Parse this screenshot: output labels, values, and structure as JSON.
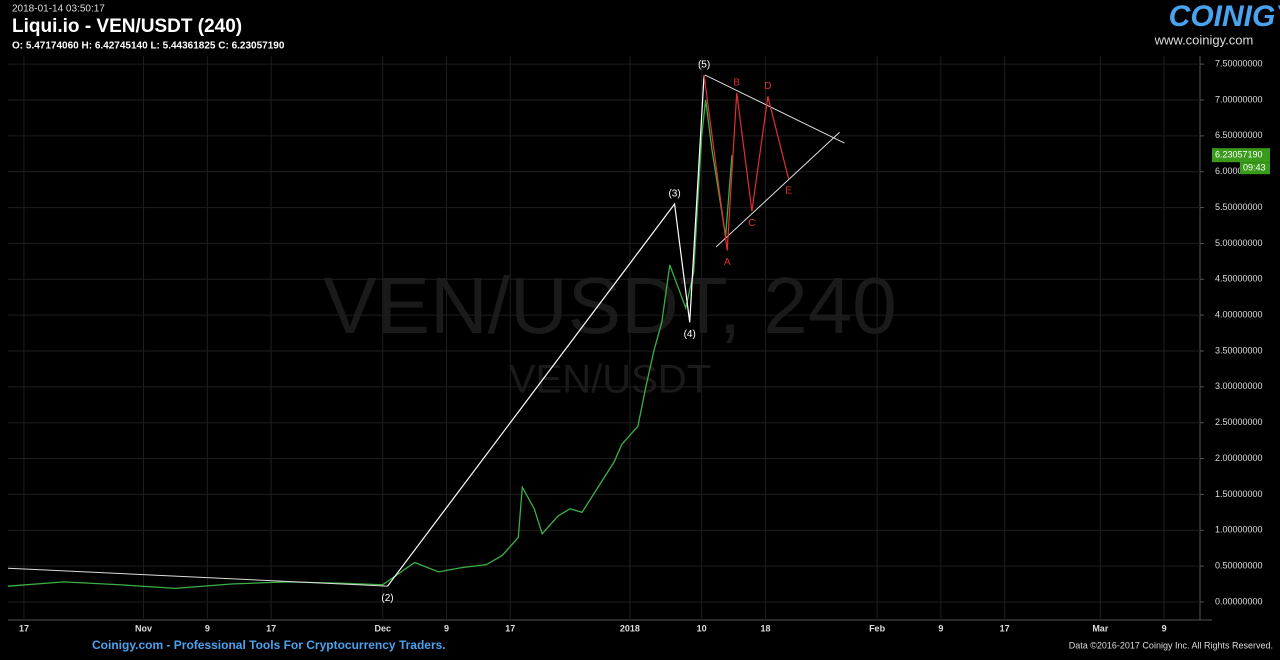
{
  "header": {
    "timestamp": "2018-01-14 03:50:17",
    "title": "Liqui.io - VEN/USDT (240)",
    "ohlc": "O: 5.47174060 H: 6.42745140 L: 5.44361825 C: 6.23057190"
  },
  "logo": {
    "name": "COINIGY",
    "url": "www.coinigy.com"
  },
  "footer": {
    "left": "Coinigy.com - Professional Tools For Cryptocurrency Traders.",
    "right": "Data ©2016-2017 Coinigy Inc. All Rights Reserved."
  },
  "chart_data": {
    "type": "line",
    "watermark": "VEN/USDT, 240",
    "watermark_sub": "VEN/USDT",
    "x": [
      -47,
      -40,
      -33,
      -26,
      -19,
      -12,
      -5,
      0,
      4,
      7,
      10,
      13,
      15,
      17,
      17.5,
      19,
      20,
      22,
      23.5,
      25,
      27,
      29,
      30,
      32,
      33,
      34,
      35,
      36,
      37,
      38,
      39,
      40,
      40.5,
      41.3,
      42.3,
      43,
      43.8
    ],
    "series": [
      {
        "name": "VEN/USDT",
        "color": "#3cb043",
        "values": [
          0.22,
          0.28,
          0.24,
          0.19,
          0.25,
          0.28,
          0.26,
          0.24,
          0.55,
          0.42,
          0.48,
          0.52,
          0.65,
          0.9,
          1.6,
          1.3,
          0.95,
          1.2,
          1.3,
          1.25,
          1.6,
          1.95,
          2.2,
          2.45,
          3.0,
          3.5,
          3.9,
          4.7,
          4.4,
          4.1,
          4.6,
          6.5,
          7.0,
          6.3,
          5.6,
          5.1,
          6.23
        ]
      }
    ],
    "xlim": [
      -47,
      102.5
    ],
    "ylim": [
      -0.14,
      7.53
    ],
    "xticks": [
      {
        "value": -45,
        "label": "17"
      },
      {
        "value": -30,
        "label": "Nov"
      },
      {
        "value": -22,
        "label": "9"
      },
      {
        "value": -14,
        "label": "17"
      },
      {
        "value": 0,
        "label": "Dec"
      },
      {
        "value": 8,
        "label": "9"
      },
      {
        "value": 16,
        "label": "17"
      },
      {
        "value": 31,
        "label": "2018"
      },
      {
        "value": 40,
        "label": "10"
      },
      {
        "value": 48,
        "label": "18"
      },
      {
        "value": 62,
        "label": "Feb"
      },
      {
        "value": 70,
        "label": "9"
      },
      {
        "value": 78,
        "label": "17"
      },
      {
        "value": 90,
        "label": "Mar"
      },
      {
        "value": 98,
        "label": "9"
      }
    ],
    "yticks": [
      {
        "value": 0,
        "label": "0.00000000"
      },
      {
        "value": 0.5,
        "label": "0.50000000"
      },
      {
        "value": 1,
        "label": "1.00000000"
      },
      {
        "value": 1.5,
        "label": "1.50000000"
      },
      {
        "value": 2,
        "label": "2.00000000"
      },
      {
        "value": 2.5,
        "label": "2.50000000"
      },
      {
        "value": 3,
        "label": "3.00000000"
      },
      {
        "value": 3.5,
        "label": "3.50000000"
      },
      {
        "value": 4,
        "label": "4.00000000"
      },
      {
        "value": 4.5,
        "label": "4.50000000"
      },
      {
        "value": 5,
        "label": "5.00000000"
      },
      {
        "value": 5.5,
        "label": "5.50000000"
      },
      {
        "value": 6,
        "label": "6.00000000"
      },
      {
        "value": 6.5,
        "label": "6.50000000"
      },
      {
        "value": 7,
        "label": "7.00000000"
      },
      {
        "value": 7.5,
        "label": "7.50000000"
      }
    ],
    "grid": true,
    "last_price": {
      "value": 6.2305719,
      "label": "6.23057190"
    },
    "countdown": "09:43",
    "waves": {
      "color": "#ffffff",
      "labels": [
        "(2)",
        "(3)",
        "(4)",
        "(5)"
      ],
      "x": [
        0.6,
        36.6,
        38.5,
        40.3
      ],
      "y": [
        0.22,
        5.55,
        3.9,
        7.35
      ]
    },
    "trend_line": {
      "x": [
        -47,
        0.6
      ],
      "y": [
        0.47,
        0.22
      ]
    },
    "correction": {
      "color": "#e03030",
      "labels": [
        "A",
        "B",
        "C",
        "D",
        "E"
      ],
      "x": [
        43.2,
        44.4,
        46.3,
        48.3,
        50.9
      ],
      "y": [
        4.9,
        7.1,
        5.45,
        7.05,
        5.9
      ]
    },
    "triangle": {
      "upper": {
        "x": [
          40.4,
          57.9
        ],
        "y": [
          7.35,
          6.4
        ]
      },
      "lower": {
        "x": [
          41.8,
          57.3
        ],
        "y": [
          4.95,
          6.55
        ]
      }
    }
  }
}
